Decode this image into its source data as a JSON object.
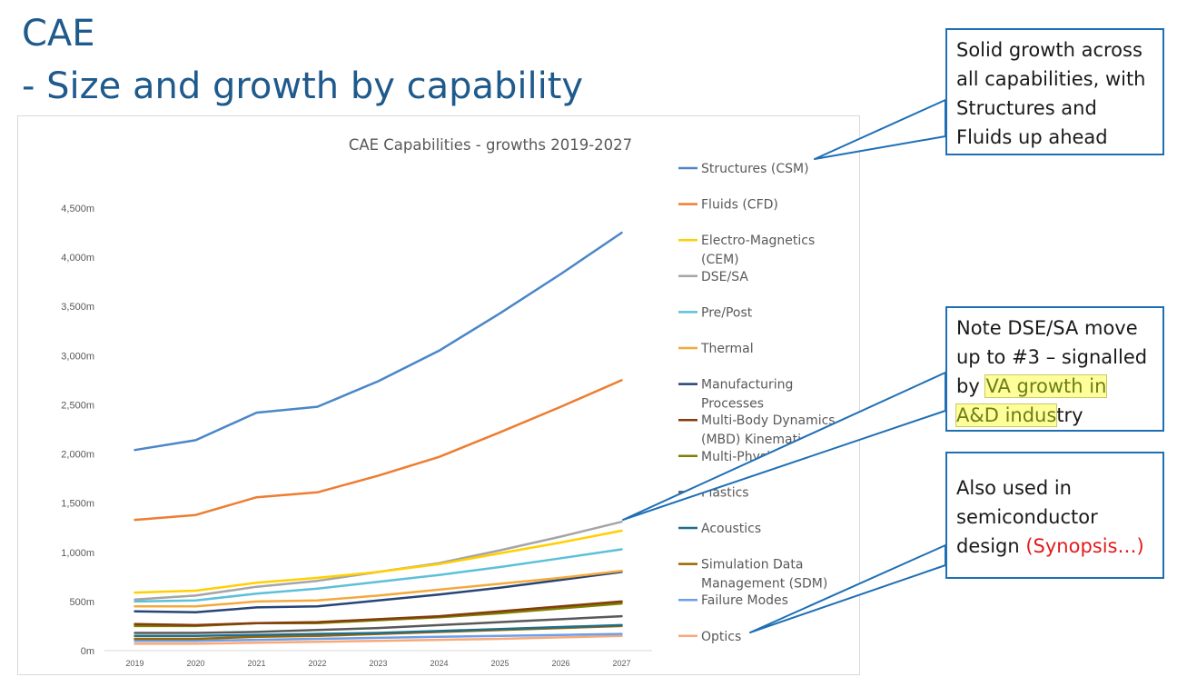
{
  "slide": {
    "title_line1": "CAE",
    "title_line2": "- Size and growth by capability"
  },
  "callouts": {
    "growth": "Solid growth across all capabilities, with Structures and Fluids up ahead",
    "dse_text_1": "Note DSE/SA move up to #3 – signalled by ",
    "dse_highlight": "VA growth in A&D indus",
    "dse_text_2": "try",
    "semi_text": "Also used in semiconductor design ",
    "semi_red": "(Synopsis…)"
  },
  "colors": {
    "title": "#1f5a8c",
    "callout_border": "#1f6fb5",
    "highlight": "#ffff99",
    "red": "#e21b1b"
  },
  "chart_data": {
    "type": "line",
    "title": "CAE Capabilities - growths 2019-2027",
    "xlabel": "",
    "ylabel": "",
    "x": [
      "2019",
      "2020",
      "2021",
      "2022",
      "2023",
      "2024",
      "2025",
      "2026",
      "2027"
    ],
    "ylim": [
      0,
      4500
    ],
    "yticks": [
      0,
      500,
      1000,
      1500,
      2000,
      2500,
      3000,
      3500,
      4000,
      4500
    ],
    "ytick_labels": [
      "0m",
      "500m",
      "1,000m",
      "1,500m",
      "2,000m",
      "2,500m",
      "3,000m",
      "3,500m",
      "4,000m",
      "4,500m"
    ],
    "legend_position": "right",
    "grid": false,
    "series": [
      {
        "name": "Structures (CSM)",
        "color": "#4a86c8",
        "values": [
          2040,
          2140,
          2420,
          2480,
          2740,
          3050,
          3430,
          3830,
          4250
        ]
      },
      {
        "name": "Fluids (CFD)",
        "color": "#ed7d31",
        "values": [
          1330,
          1380,
          1560,
          1610,
          1780,
          1970,
          2220,
          2480,
          2750
        ]
      },
      {
        "name": "Electro-Magnetics (CEM)",
        "color": "#ffd000",
        "values": [
          590,
          610,
          690,
          740,
          800,
          880,
          990,
          1100,
          1220
        ]
      },
      {
        "name": "DSE/SA",
        "color": "#a5a5a5",
        "values": [
          520,
          560,
          650,
          710,
          800,
          890,
          1020,
          1160,
          1310
        ]
      },
      {
        "name": "Pre/Post",
        "color": "#5bc0d8",
        "values": [
          500,
          510,
          580,
          630,
          700,
          770,
          850,
          940,
          1030
        ]
      },
      {
        "name": "Thermal",
        "color": "#f4a93c",
        "values": [
          450,
          450,
          500,
          510,
          560,
          620,
          680,
          740,
          810
        ]
      },
      {
        "name": "Manufacturing Processes",
        "color": "#264478",
        "values": [
          400,
          390,
          440,
          450,
          510,
          570,
          640,
          720,
          800
        ]
      },
      {
        "name": "Multi-Body Dynamics (MBD) Kinematics",
        "color": "#843c0c",
        "values": [
          270,
          260,
          280,
          290,
          320,
          350,
          400,
          450,
          500
        ]
      },
      {
        "name": "Multi-Physics",
        "color": "#7f7f00",
        "values": [
          250,
          250,
          280,
          280,
          310,
          340,
          380,
          430,
          480
        ]
      },
      {
        "name": "Plastics",
        "color": "#595959",
        "values": [
          180,
          180,
          190,
          210,
          230,
          260,
          290,
          320,
          350
        ]
      },
      {
        "name": "Acoustics",
        "color": "#1f6f8b",
        "values": [
          150,
          150,
          160,
          170,
          180,
          200,
          220,
          240,
          260
        ]
      },
      {
        "name": "Simulation Data Management (SDM)",
        "color": "#9c6500",
        "values": [
          120,
          120,
          140,
          150,
          170,
          190,
          210,
          230,
          250
        ]
      },
      {
        "name": "Failure Modes",
        "color": "#6d9eeb",
        "values": [
          100,
          100,
          110,
          120,
          130,
          140,
          150,
          160,
          170
        ]
      },
      {
        "name": "Optics",
        "color": "#f8a97a",
        "values": [
          70,
          70,
          80,
          90,
          100,
          110,
          120,
          135,
          150
        ]
      }
    ]
  }
}
